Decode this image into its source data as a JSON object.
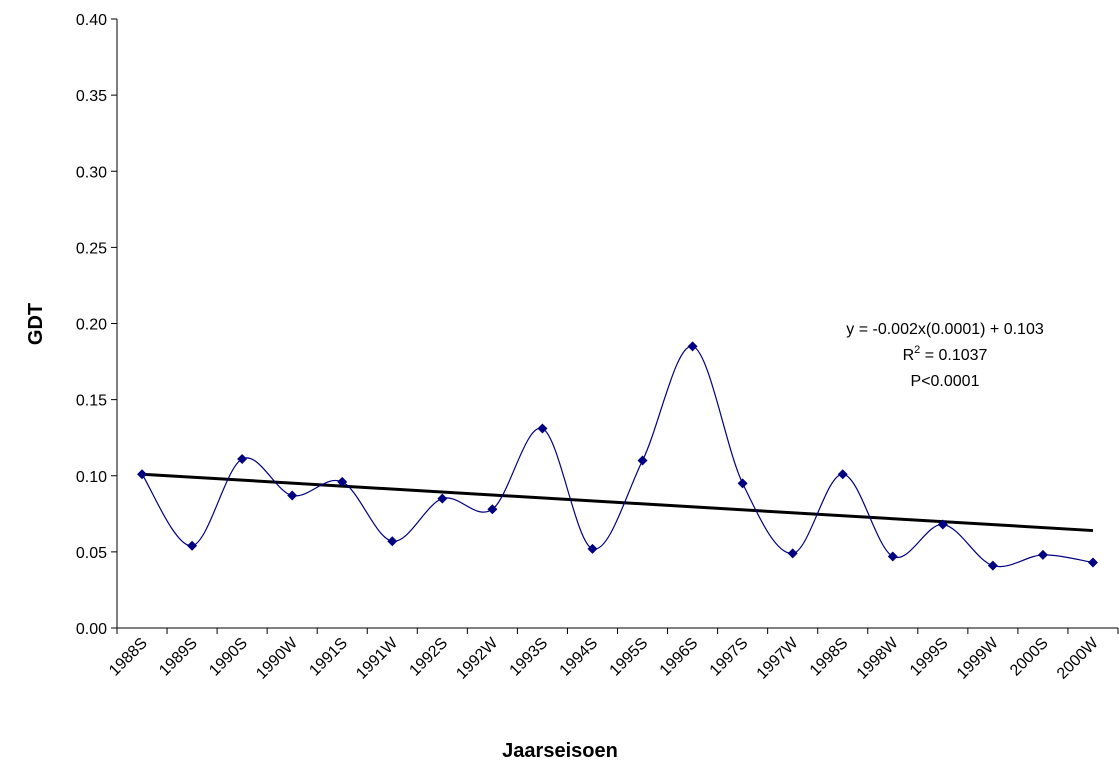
{
  "chart_data": {
    "type": "line",
    "smooth": true,
    "x_label": "Jaarseisoen",
    "y_label": "GDT",
    "categories": [
      "1988S",
      "1989S",
      "1990S",
      "1990W",
      "1991S",
      "1991W",
      "1992S",
      "1992W",
      "1993S",
      "1994S",
      "1995S",
      "1996S",
      "1997S",
      "1997W",
      "1998S",
      "1998W",
      "1999S",
      "1999W",
      "2000S",
      "2000W"
    ],
    "series": [
      {
        "color": "#000080",
        "values": [
          0.101,
          0.054,
          0.111,
          0.087,
          0.096,
          0.057,
          0.085,
          0.078,
          0.131,
          0.052,
          0.11,
          0.185,
          0.095,
          0.049,
          0.101,
          0.047,
          0.068,
          0.041,
          0.048,
          0.043
        ]
      }
    ],
    "trendline": {
      "color": "#000000",
      "start": 0.101,
      "end": 0.064
    },
    "equation": "y = -0.002x(0.0001) + 0.103",
    "r_squared": {
      "base": "R",
      "sup": "2",
      "rest": " = 0.1037"
    },
    "p_value": "P<0.0001",
    "ylim": [
      0,
      0.4
    ],
    "yticks": [
      {
        "value": 0,
        "label": "0.00"
      },
      {
        "value": 0.05,
        "label": "0.05"
      },
      {
        "value": 0.1,
        "label": "0.10"
      },
      {
        "value": 0.15,
        "label": "0.15"
      },
      {
        "value": 0.2,
        "label": "0.20"
      },
      {
        "value": 0.25,
        "label": "0.25"
      },
      {
        "value": 0.3,
        "label": "0.30"
      },
      {
        "value": 0.35,
        "label": "0.35"
      },
      {
        "value": 0.4,
        "label": "0.40"
      }
    ],
    "grid": false
  }
}
